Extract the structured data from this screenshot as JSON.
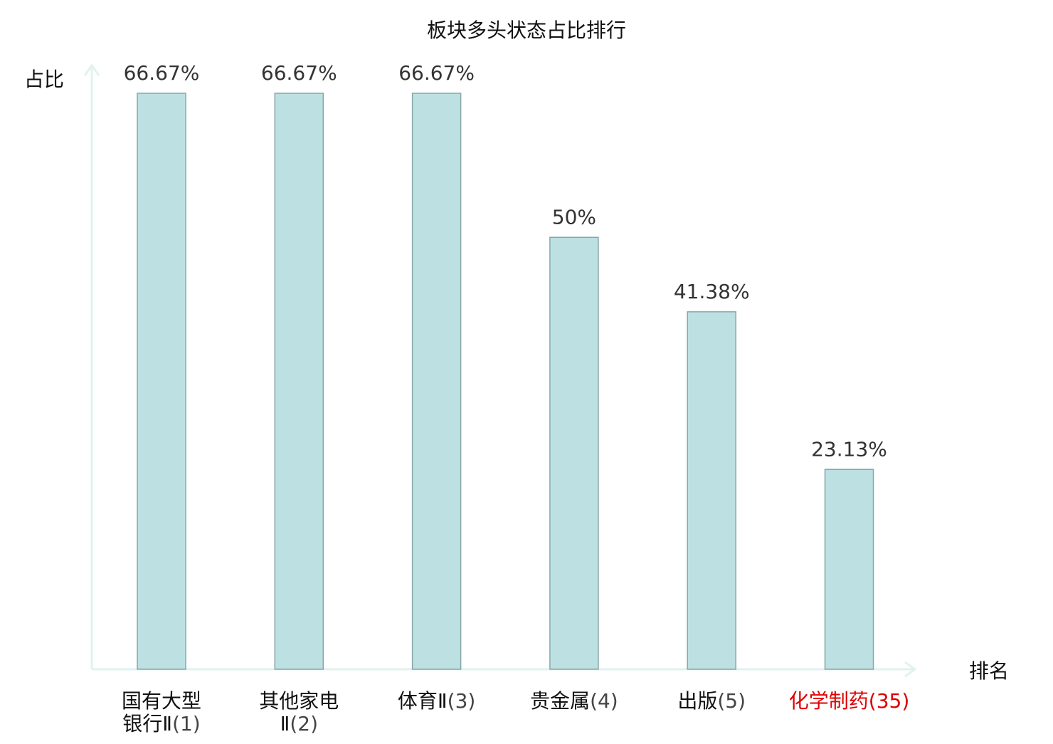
{
  "chart_data": {
    "type": "bar",
    "title": "板块多头状态占比排行",
    "ylabel": "占比",
    "xlabel": "排名",
    "ylim": [
      0,
      70
    ],
    "grid": false,
    "categories": [
      {
        "name_lines": [
          "国有大型",
          "银行Ⅱ"
        ],
        "rank": "(1)",
        "highlight": false
      },
      {
        "name_lines": [
          "其他家电",
          "Ⅱ"
        ],
        "rank": "(2)",
        "highlight": false
      },
      {
        "name_lines": [
          "体育Ⅱ"
        ],
        "rank": "(3)",
        "highlight": false
      },
      {
        "name_lines": [
          "贵金属"
        ],
        "rank": "(4)",
        "highlight": false
      },
      {
        "name_lines": [
          "出版"
        ],
        "rank": "(5)",
        "highlight": false
      },
      {
        "name_lines": [
          "化学制药"
        ],
        "rank": "(35)",
        "highlight": true
      }
    ],
    "values": [
      66.67,
      66.67,
      66.67,
      50,
      41.38,
      23.13
    ],
    "value_labels": [
      "66.67%",
      "66.67%",
      "66.67%",
      "50%",
      "41.38%",
      "23.13%"
    ]
  },
  "colors": {
    "bar_fill": "#bde1e3",
    "bar_stroke": "#86a7a9",
    "axis": "#e1f2ef",
    "text": "#111111",
    "value_text": "#333333",
    "rank_text": "#444444",
    "highlight": "#e00000"
  }
}
